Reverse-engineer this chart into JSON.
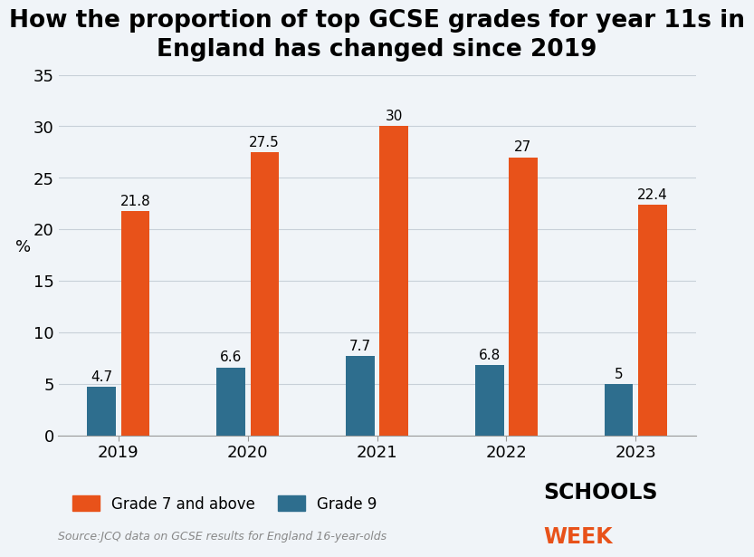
{
  "title": "How the proportion of top GCSE grades for year 11s in\nEngland has changed since 2019",
  "years": [
    "2019",
    "2020",
    "2021",
    "2022",
    "2023"
  ],
  "grade7_values": [
    21.8,
    27.5,
    30,
    27,
    22.4
  ],
  "grade9_values": [
    4.7,
    6.6,
    7.7,
    6.8,
    5
  ],
  "grade7_color": "#E8521A",
  "grade9_color": "#2E6E8E",
  "ylabel": "%",
  "ylim": [
    0,
    35
  ],
  "yticks": [
    0,
    5,
    10,
    15,
    20,
    25,
    30,
    35
  ],
  "background_color": "#F0F4F8",
  "title_fontsize": 19,
  "tick_fontsize": 13,
  "bar_label_fontsize": 11,
  "source_text": "Source:JCQ data on GCSE results for England 16-year-olds",
  "legend_labels": [
    "Grade 7 and above",
    "Grade 9"
  ],
  "bar_width": 0.22,
  "bar_gap": 0.04
}
